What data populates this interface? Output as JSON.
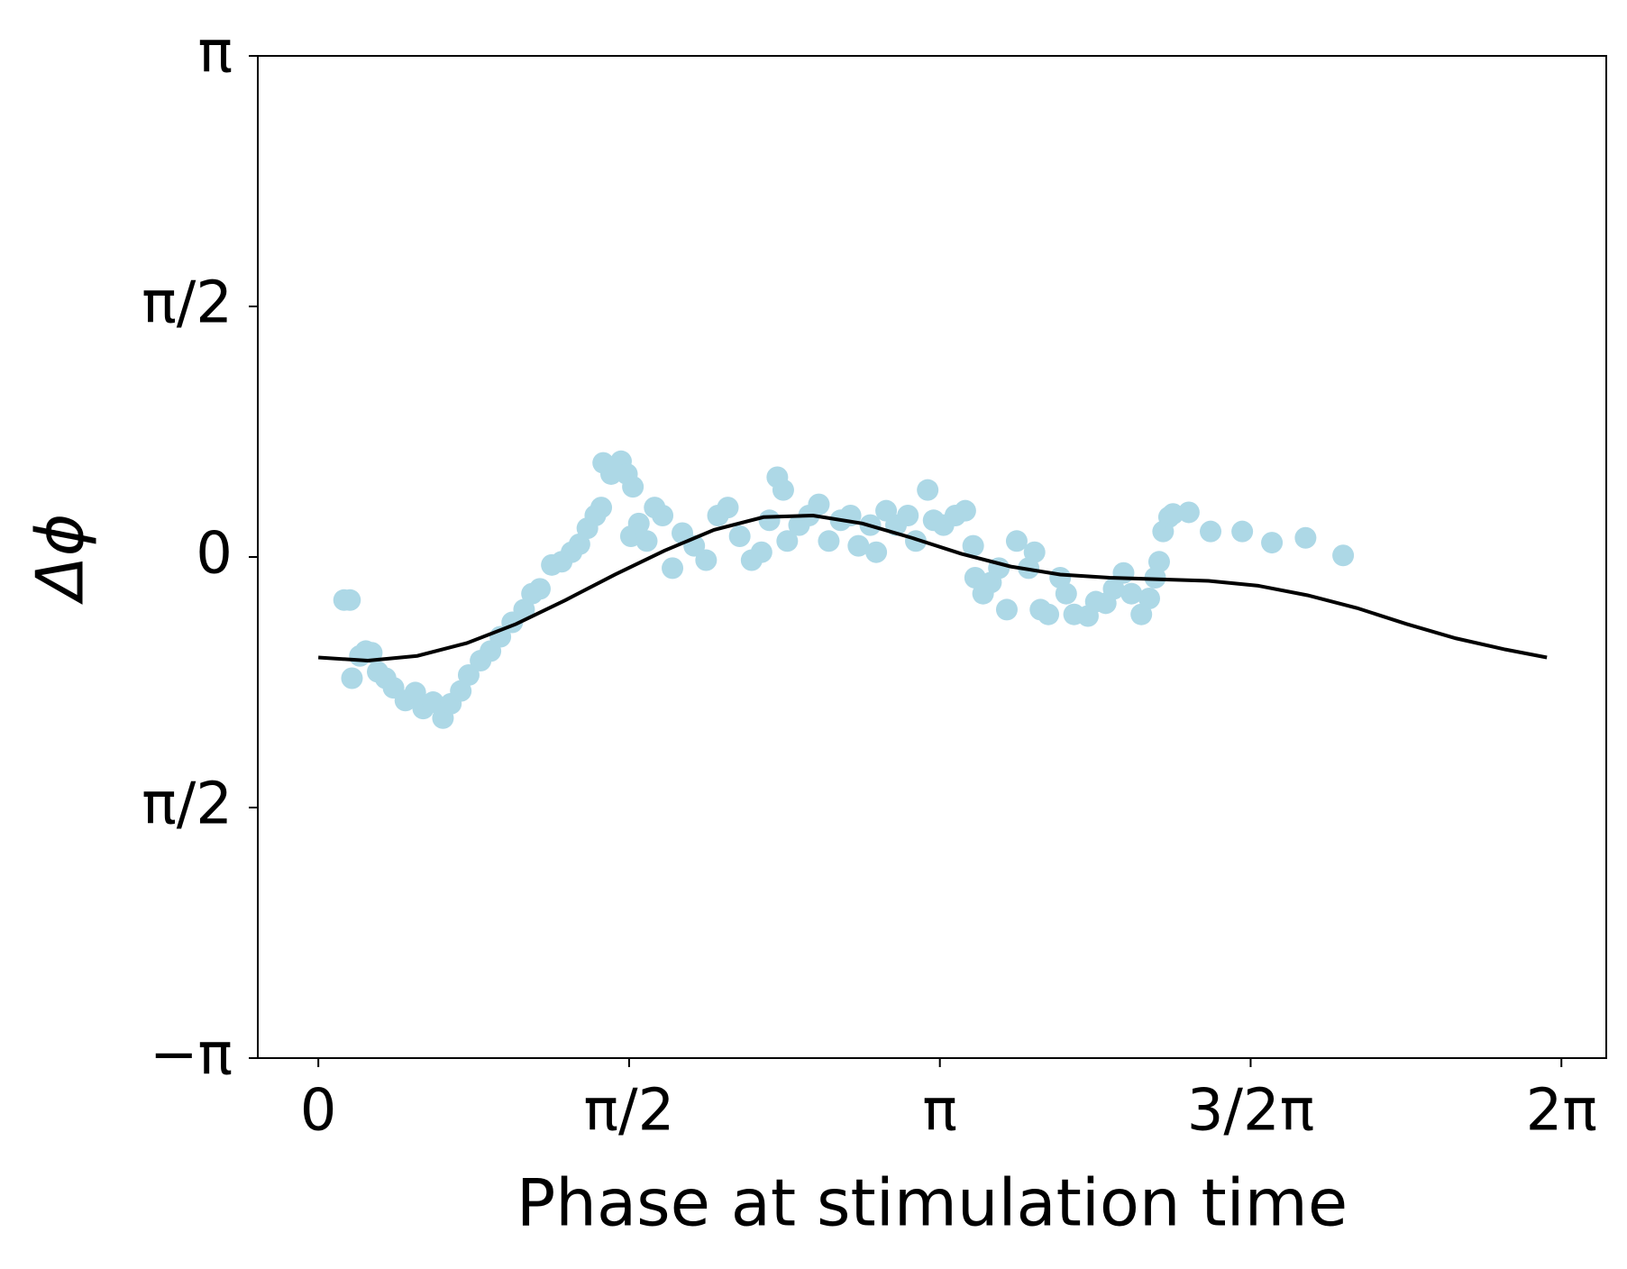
{
  "chart_data": {
    "type": "scatter",
    "xlabel": "Phase at stimulation time",
    "ylabel": "Δϕ",
    "xlim": [
      -0.306,
      6.51
    ],
    "ylim": [
      -3.1416,
      3.1416
    ],
    "xticks": [
      0,
      {
        "value": 1.5708,
        "label": "π/2"
      },
      {
        "value": 3.1416,
        "label": "π"
      },
      {
        "value": 4.7124,
        "label": "3/2π"
      },
      {
        "value": 6.2832,
        "label": "2π"
      }
    ],
    "yticks": [
      {
        "value": -3.1416,
        "label": "−π"
      },
      {
        "value": -1.5708,
        "label": "π/2"
      },
      0,
      {
        "value": 1.5708,
        "label": "π/2"
      },
      {
        "value": 3.1416,
        "label": "π"
      }
    ],
    "series": [
      {
        "type": "scatter",
        "color": "#add8e6",
        "x": [
          0.13,
          0.16,
          0.17,
          0.21,
          0.24,
          0.27,
          0.3,
          0.34,
          0.38,
          0.44,
          0.49,
          0.53,
          0.58,
          0.63,
          0.67,
          0.72,
          0.76,
          0.82,
          0.87,
          0.92,
          0.98,
          1.04,
          1.08,
          1.12,
          1.18,
          1.23,
          1.28,
          1.32,
          1.36,
          1.4,
          1.43,
          1.44,
          1.48,
          1.53,
          1.56,
          1.59,
          1.58,
          1.62,
          1.66,
          1.7,
          1.74,
          1.79,
          1.84,
          1.9,
          1.96,
          2.02,
          2.07,
          2.13,
          2.19,
          2.24,
          2.28,
          2.32,
          2.35,
          2.37,
          2.43,
          2.48,
          2.53,
          2.58,
          2.64,
          2.69,
          2.73,
          2.79,
          2.82,
          2.87,
          2.92,
          2.98,
          3.02,
          3.08,
          3.11,
          3.16,
          3.22,
          3.27,
          3.31,
          3.32,
          3.36,
          3.4,
          3.44,
          3.48,
          3.53,
          3.59,
          3.62,
          3.65,
          3.69,
          3.75,
          3.78,
          3.82,
          3.89,
          3.93,
          3.98,
          4.02,
          4.07,
          4.11,
          4.16,
          4.2,
          4.23,
          4.25,
          4.27,
          4.3,
          4.32,
          4.4,
          4.51,
          4.67,
          4.82,
          4.99,
          5.18
        ],
        "values": [
          -0.27,
          -0.27,
          -0.76,
          -0.62,
          -0.59,
          -0.6,
          -0.72,
          -0.76,
          -0.82,
          -0.9,
          -0.85,
          -0.95,
          -0.91,
          -1.01,
          -0.92,
          -0.84,
          -0.74,
          -0.65,
          -0.59,
          -0.5,
          -0.41,
          -0.33,
          -0.23,
          -0.2,
          -0.05,
          -0.03,
          0.03,
          0.08,
          0.18,
          0.26,
          0.31,
          0.59,
          0.52,
          0.6,
          0.52,
          0.44,
          0.13,
          0.21,
          0.1,
          0.31,
          0.26,
          -0.07,
          0.15,
          0.07,
          -0.02,
          0.26,
          0.31,
          0.13,
          -0.02,
          0.03,
          0.23,
          0.5,
          0.42,
          0.1,
          0.2,
          0.26,
          0.33,
          0.1,
          0.23,
          0.26,
          0.07,
          0.2,
          0.03,
          0.29,
          0.2,
          0.26,
          0.1,
          0.42,
          0.23,
          0.2,
          0.26,
          0.29,
          0.07,
          -0.13,
          -0.23,
          -0.16,
          -0.07,
          -0.33,
          0.1,
          -0.07,
          0.03,
          -0.33,
          -0.36,
          -0.13,
          -0.23,
          -0.36,
          -0.37,
          -0.28,
          -0.29,
          -0.2,
          -0.1,
          -0.23,
          -0.36,
          -0.26,
          -0.13,
          -0.03,
          0.16,
          0.25,
          0.27,
          0.28,
          0.16,
          0.16,
          0.09,
          0.12,
          0.01
        ]
      },
      {
        "type": "line",
        "color": "#000000",
        "x": [
          0,
          0.25,
          0.5,
          0.75,
          1.0,
          1.25,
          1.5,
          1.75,
          2.0,
          2.25,
          2.5,
          2.75,
          3.0,
          3.25,
          3.5,
          3.75,
          4.0,
          4.25,
          4.5,
          4.75,
          5.0,
          5.25,
          5.5,
          5.75,
          6.0,
          6.21
        ],
        "values": [
          -0.63,
          -0.65,
          -0.62,
          -0.54,
          -0.42,
          -0.27,
          -0.11,
          0.04,
          0.17,
          0.25,
          0.26,
          0.21,
          0.12,
          0.02,
          -0.06,
          -0.11,
          -0.13,
          -0.14,
          -0.15,
          -0.18,
          -0.24,
          -0.32,
          -0.42,
          -0.51,
          -0.58,
          -0.63
        ]
      }
    ]
  }
}
